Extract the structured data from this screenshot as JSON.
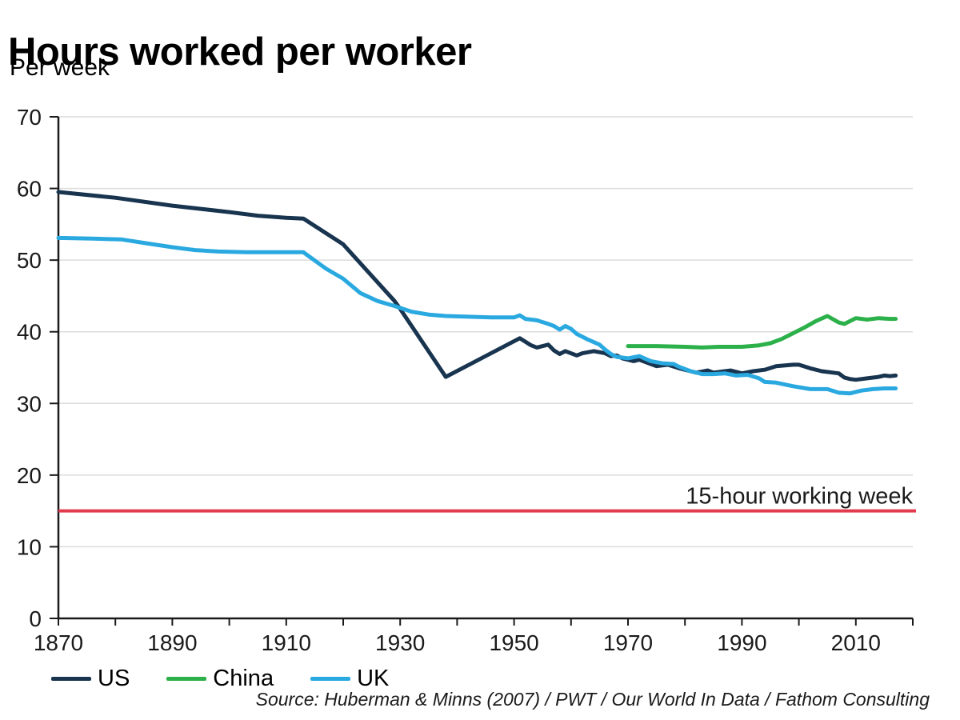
{
  "header": {
    "title": "Hours worked per worker",
    "subtitle": "Per week"
  },
  "source": {
    "text": "Source: Huberman & Minns (2007) / PWT / Our World In Data / Fathom Consulting"
  },
  "colors": {
    "us": "#18344f",
    "china": "#2bb04a",
    "uk": "#2aa9e0",
    "reference": "#e23b4d",
    "grid": "#dcdcdc",
    "axis": "#1a1a1a"
  },
  "chart_data": {
    "type": "line",
    "title": "Hours worked per worker",
    "subtitle": "Per week",
    "xlabel": "",
    "ylabel": "",
    "xlim": [
      1870,
      2020
    ],
    "ylim": [
      0,
      70
    ],
    "x_major_ticks": [
      1870,
      1890,
      1910,
      1930,
      1950,
      1970,
      1990,
      2010
    ],
    "x_minor_tick_step": 10,
    "y_ticks": [
      0,
      10,
      20,
      30,
      40,
      50,
      60,
      70
    ],
    "grid": "horizontal",
    "legend_position": "bottom-left",
    "reference_line": {
      "value": 15,
      "color": "#e23b4d",
      "label": "15-hour working week"
    },
    "series": [
      {
        "name": "US",
        "color": "#18344f",
        "points": [
          [
            1870,
            59.5
          ],
          [
            1880,
            58.7
          ],
          [
            1890,
            57.6
          ],
          [
            1900,
            56.7
          ],
          [
            1905,
            56.2
          ],
          [
            1910,
            55.9
          ],
          [
            1913,
            55.8
          ],
          [
            1920,
            52.2
          ],
          [
            1929,
            44.3
          ],
          [
            1930,
            43.2
          ],
          [
            1938,
            33.7
          ],
          [
            1944,
            36.2
          ],
          [
            1951,
            39.1
          ],
          [
            1953,
            38.1
          ],
          [
            1954,
            37.8
          ],
          [
            1956,
            38.2
          ],
          [
            1957,
            37.4
          ],
          [
            1958,
            36.9
          ],
          [
            1959,
            37.3
          ],
          [
            1961,
            36.7
          ],
          [
            1962,
            37.0
          ],
          [
            1964,
            37.3
          ],
          [
            1966,
            37.0
          ],
          [
            1967,
            36.6
          ],
          [
            1968,
            36.7
          ],
          [
            1969,
            36.3
          ],
          [
            1971,
            35.9
          ],
          [
            1972,
            36.1
          ],
          [
            1974,
            35.5
          ],
          [
            1975,
            35.2
          ],
          [
            1977,
            35.4
          ],
          [
            1979,
            34.9
          ],
          [
            1981,
            34.5
          ],
          [
            1982,
            34.3
          ],
          [
            1984,
            34.6
          ],
          [
            1985,
            34.3
          ],
          [
            1987,
            34.5
          ],
          [
            1988,
            34.6
          ],
          [
            1990,
            34.2
          ],
          [
            1992,
            34.5
          ],
          [
            1994,
            34.7
          ],
          [
            1996,
            35.2
          ],
          [
            1999,
            35.4
          ],
          [
            2000,
            35.4
          ],
          [
            2002,
            34.9
          ],
          [
            2004,
            34.5
          ],
          [
            2006,
            34.3
          ],
          [
            2007,
            34.2
          ],
          [
            2008,
            33.6
          ],
          [
            2009,
            33.4
          ],
          [
            2010,
            33.3
          ],
          [
            2012,
            33.5
          ],
          [
            2014,
            33.7
          ],
          [
            2015,
            33.9
          ],
          [
            2016,
            33.8
          ],
          [
            2017,
            33.9
          ]
        ]
      },
      {
        "name": "China",
        "color": "#2bb04a",
        "points": [
          [
            1970,
            38.0
          ],
          [
            1975,
            38.0
          ],
          [
            1980,
            37.9
          ],
          [
            1983,
            37.8
          ],
          [
            1986,
            37.9
          ],
          [
            1990,
            37.9
          ],
          [
            1993,
            38.1
          ],
          [
            1995,
            38.4
          ],
          [
            1997,
            39.0
          ],
          [
            1999,
            39.8
          ],
          [
            2001,
            40.6
          ],
          [
            2003,
            41.5
          ],
          [
            2005,
            42.2
          ],
          [
            2007,
            41.3
          ],
          [
            2008,
            41.1
          ],
          [
            2010,
            41.9
          ],
          [
            2012,
            41.7
          ],
          [
            2014,
            41.9
          ],
          [
            2016,
            41.8
          ],
          [
            2017,
            41.8
          ]
        ]
      },
      {
        "name": "UK",
        "color": "#2aa9e0",
        "points": [
          [
            1870,
            53.1
          ],
          [
            1876,
            53.0
          ],
          [
            1881,
            52.9
          ],
          [
            1885,
            52.4
          ],
          [
            1890,
            51.8
          ],
          [
            1894,
            51.4
          ],
          [
            1898,
            51.2
          ],
          [
            1903,
            51.1
          ],
          [
            1908,
            51.1
          ],
          [
            1913,
            51.1
          ],
          [
            1917,
            48.8
          ],
          [
            1920,
            47.4
          ],
          [
            1923,
            45.4
          ],
          [
            1926,
            44.3
          ],
          [
            1929,
            43.6
          ],
          [
            1932,
            42.8
          ],
          [
            1935,
            42.4
          ],
          [
            1938,
            42.2
          ],
          [
            1942,
            42.1
          ],
          [
            1946,
            42.0
          ],
          [
            1950,
            42.0
          ],
          [
            1951,
            42.3
          ],
          [
            1952,
            41.8
          ],
          [
            1954,
            41.6
          ],
          [
            1956,
            41.1
          ],
          [
            1957,
            40.8
          ],
          [
            1958,
            40.3
          ],
          [
            1959,
            40.8
          ],
          [
            1960,
            40.4
          ],
          [
            1961,
            39.7
          ],
          [
            1963,
            38.9
          ],
          [
            1965,
            38.2
          ],
          [
            1966,
            37.5
          ],
          [
            1967,
            36.9
          ],
          [
            1968,
            36.5
          ],
          [
            1970,
            36.3
          ],
          [
            1972,
            36.6
          ],
          [
            1974,
            35.9
          ],
          [
            1976,
            35.6
          ],
          [
            1978,
            35.5
          ],
          [
            1979,
            35.1
          ],
          [
            1981,
            34.5
          ],
          [
            1983,
            34.1
          ],
          [
            1985,
            34.1
          ],
          [
            1987,
            34.2
          ],
          [
            1989,
            33.9
          ],
          [
            1991,
            34.0
          ],
          [
            1993,
            33.5
          ],
          [
            1994,
            33.0
          ],
          [
            1996,
            32.9
          ],
          [
            1999,
            32.4
          ],
          [
            2002,
            32.0
          ],
          [
            2005,
            32.0
          ],
          [
            2007,
            31.5
          ],
          [
            2009,
            31.4
          ],
          [
            2011,
            31.8
          ],
          [
            2013,
            32.0
          ],
          [
            2015,
            32.1
          ],
          [
            2017,
            32.1
          ]
        ]
      }
    ]
  }
}
